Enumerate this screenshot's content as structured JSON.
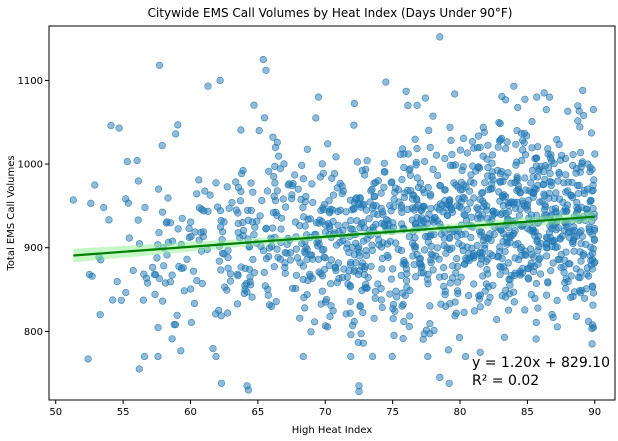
{
  "chart_data": {
    "type": "scatter",
    "title": "Citywide EMS Call Volumes by Heat Index (Days Under 90°F)",
    "xlabel": "High Heat Index",
    "ylabel": "Total EMS Call Volumes",
    "xlim": [
      49.5,
      91.5
    ],
    "ylim": [
      718,
      1165
    ],
    "xticks": [
      50,
      55,
      60,
      65,
      70,
      75,
      80,
      85,
      90
    ],
    "yticks": [
      800,
      900,
      1000,
      1100
    ],
    "grid": false,
    "legend": "none",
    "point_color": "#1f77b4",
    "point_alpha": 0.5,
    "fit_color": "#008000",
    "ci_color": "#90ee90",
    "regression": {
      "slope": 1.2,
      "intercept": 829.1,
      "x_range": [
        51.3,
        90.0
      ],
      "ci_halfwidth": [
        8,
        3,
        6
      ]
    },
    "annotations": [
      "y = 1.20x + 829.10",
      "R² = 0.02"
    ],
    "notable_points": [
      {
        "x": 78.5,
        "y": 1152
      },
      {
        "x": 65.4,
        "y": 1125
      },
      {
        "x": 57.7,
        "y": 1118
      },
      {
        "x": 65.6,
        "y": 1112
      },
      {
        "x": 62.2,
        "y": 1100
      },
      {
        "x": 89.1,
        "y": 1088
      },
      {
        "x": 61.3,
        "y": 1093
      },
      {
        "x": 84.0,
        "y": 1093
      },
      {
        "x": 54.1,
        "y": 1046
      },
      {
        "x": 54.7,
        "y": 1043
      },
      {
        "x": 52.9,
        "y": 975
      },
      {
        "x": 51.3,
        "y": 957
      },
      {
        "x": 52.6,
        "y": 953
      },
      {
        "x": 52.5,
        "y": 868
      },
      {
        "x": 52.7,
        "y": 866
      },
      {
        "x": 53.3,
        "y": 820
      },
      {
        "x": 52.4,
        "y": 767
      },
      {
        "x": 56.2,
        "y": 755
      },
      {
        "x": 62.3,
        "y": 738
      },
      {
        "x": 64.2,
        "y": 735
      },
      {
        "x": 64.3,
        "y": 730
      },
      {
        "x": 72.5,
        "y": 728
      },
      {
        "x": 72.5,
        "y": 735
      },
      {
        "x": 78.5,
        "y": 745
      },
      {
        "x": 79.2,
        "y": 738
      },
      {
        "x": 81.5,
        "y": 775
      },
      {
        "x": 89.8,
        "y": 785
      },
      {
        "x": 89.9,
        "y": 846
      },
      {
        "x": 89.5,
        "y": 1000
      },
      {
        "x": 90.0,
        "y": 1012
      },
      {
        "x": 85.7,
        "y": 1080
      },
      {
        "x": 86.4,
        "y": 1065
      },
      {
        "x": 88.0,
        "y": 1063
      },
      {
        "x": 76.0,
        "y": 1087
      },
      {
        "x": 74.5,
        "y": 1098
      },
      {
        "x": 69.5,
        "y": 1080
      },
      {
        "x": 69.3,
        "y": 1055
      },
      {
        "x": 81.8,
        "y": 1038
      },
      {
        "x": 58.9,
        "y": 1036
      },
      {
        "x": 65.1,
        "y": 1040
      }
    ],
    "bulk_sample": {
      "count": 1320,
      "x_range": [
        52.5,
        90.0
      ],
      "y_center_formula": "1.20x + 829.10",
      "y_sd": 58
    }
  }
}
